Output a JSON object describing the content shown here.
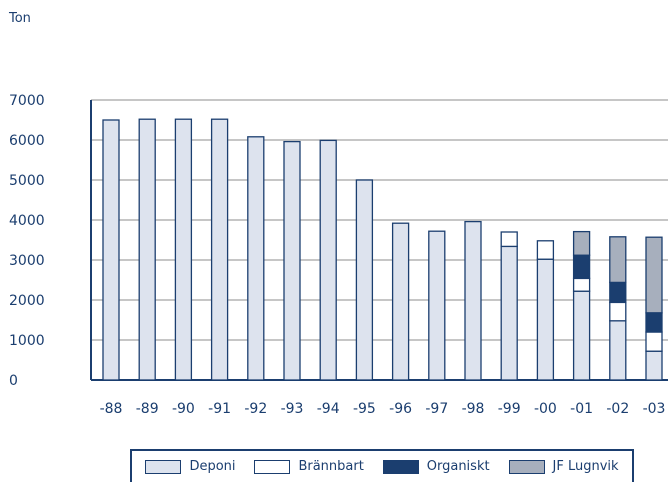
{
  "chart_data": {
    "type": "bar",
    "stacked": true,
    "unit_label": "Ton",
    "categories": [
      "-88",
      "-89",
      "-90",
      "-91",
      "-92",
      "-93",
      "-94",
      "-95",
      "-96",
      "-97",
      "-98",
      "-99",
      "-00",
      "-01",
      "-02",
      "-03"
    ],
    "series": [
      {
        "name": "Deponi",
        "color": "#dde3ee",
        "values": [
          6500,
          6520,
          6520,
          6520,
          6080,
          5960,
          5990,
          5000,
          3920,
          3720,
          3960,
          3340,
          3020,
          2220,
          1480,
          720
        ]
      },
      {
        "name": "Brännbart",
        "color": "#ffffff",
        "values": [
          0,
          0,
          0,
          0,
          0,
          0,
          0,
          0,
          0,
          0,
          0,
          360,
          460,
          320,
          460,
          480
        ]
      },
      {
        "name": "Organiskt",
        "color": "#1b3e6f",
        "values": [
          0,
          0,
          0,
          0,
          0,
          0,
          0,
          0,
          0,
          0,
          0,
          0,
          0,
          580,
          500,
          480
        ]
      },
      {
        "name": "JF Lugnvik",
        "color": "#a7afbd",
        "values": [
          0,
          0,
          0,
          0,
          0,
          0,
          0,
          0,
          0,
          0,
          0,
          0,
          0,
          590,
          1140,
          1890
        ]
      }
    ],
    "ylim": [
      0,
      7000
    ],
    "yticks": [
      "0",
      "1000",
      "2000",
      "3000",
      "4000",
      "5000",
      "6000",
      "7000"
    ],
    "grid": true,
    "legend_position": "bottom"
  }
}
